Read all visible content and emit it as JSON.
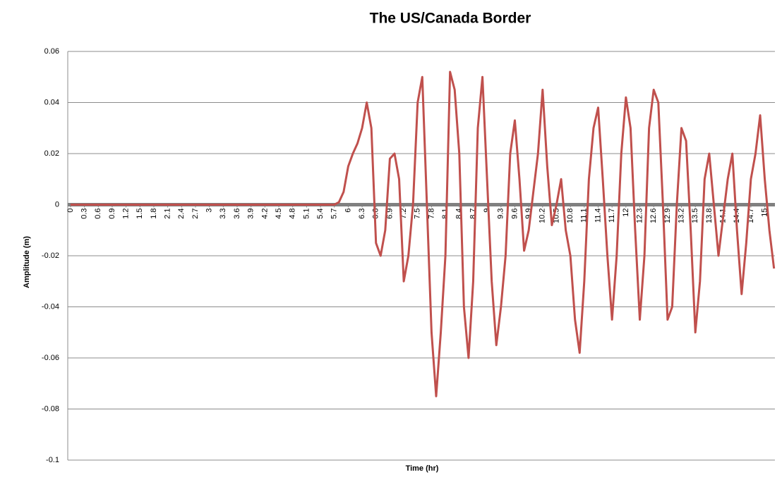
{
  "chart_data": {
    "type": "line",
    "title": "The US/Canada Border",
    "x_label": "Time (hr)",
    "y_label": "Amplitude (m)",
    "x": [
      0,
      0.1,
      0.2,
      0.3,
      0.4,
      0.5,
      0.6,
      0.7,
      0.8,
      0.9,
      1,
      1.1,
      1.2,
      1.3,
      1.4,
      1.5,
      1.6,
      1.7,
      1.8,
      1.9,
      2,
      2.1,
      2.2,
      2.3,
      2.4,
      2.5,
      2.6,
      2.7,
      2.8,
      2.9,
      3,
      3.1,
      3.2,
      3.3,
      3.4,
      3.5,
      3.6,
      3.7,
      3.8,
      3.9,
      4,
      4.1,
      4.2,
      4.3,
      4.4,
      4.5,
      4.6,
      4.7,
      4.8,
      4.9,
      5,
      5.1,
      5.2,
      5.3,
      5.4,
      5.5,
      5.6,
      5.7,
      5.8,
      5.9,
      6,
      6.1,
      6.2,
      6.3,
      6.4,
      6.5,
      6.6,
      6.7,
      6.8,
      6.9,
      7,
      7.1,
      7.2,
      7.3,
      7.4,
      7.5,
      7.6,
      7.7,
      7.8,
      7.9,
      8,
      8.1,
      8.2,
      8.3,
      8.4,
      8.5,
      8.6,
      8.7,
      8.8,
      8.9,
      9,
      9.1,
      9.2,
      9.3,
      9.4,
      9.5,
      9.6,
      9.7,
      9.8,
      9.9,
      10,
      10.1,
      10.2,
      10.3,
      10.4,
      10.5,
      10.6,
      10.7,
      10.8,
      10.9,
      11,
      11.1,
      11.2,
      11.3,
      11.4,
      11.5,
      11.6,
      11.7,
      11.8,
      11.9,
      12,
      12.1,
      12.2,
      12.3,
      12.4,
      12.5,
      12.6,
      12.7,
      12.8,
      12.9,
      13,
      13.1,
      13.2,
      13.3,
      13.4,
      13.5,
      13.6,
      13.7,
      13.8,
      13.9,
      14,
      14.1,
      14.2,
      14.3,
      14.4,
      14.5,
      14.6,
      14.7,
      14.8,
      14.9,
      15,
      15.1,
      15.2
    ],
    "series": [
      {
        "name": "Amplitude",
        "color": "#c0504d",
        "values": [
          0,
          0,
          0,
          0,
          0,
          0,
          0,
          0,
          0,
          0,
          0,
          0,
          0,
          0,
          0,
          0,
          0,
          0,
          0,
          0,
          0,
          0,
          0,
          0,
          0,
          0,
          0,
          0,
          0,
          0,
          0,
          0,
          0,
          0,
          0,
          0,
          0,
          0,
          0,
          0,
          0,
          0,
          0,
          0,
          0,
          0,
          0,
          0,
          0,
          0,
          0,
          0,
          0,
          0,
          0,
          0,
          0,
          0,
          0.001,
          0.005,
          0.015,
          0.02,
          0.024,
          0.03,
          0.04,
          0.03,
          -0.015,
          -0.02,
          -0.01,
          0.018,
          0.02,
          0.01,
          -0.03,
          -0.02,
          0,
          0.04,
          0.05,
          0,
          -0.05,
          -0.075,
          -0.05,
          -0.02,
          0.052,
          0.045,
          0.02,
          -0.04,
          -0.06,
          -0.03,
          0.03,
          0.05,
          0.01,
          -0.03,
          -0.055,
          -0.04,
          -0.02,
          0.02,
          0.033,
          0.01,
          -0.018,
          -0.01,
          0.005,
          0.02,
          0.045,
          0.015,
          -0.008,
          0,
          0.01,
          -0.01,
          -0.02,
          -0.045,
          -0.058,
          -0.03,
          0.01,
          0.03,
          0.038,
          0.01,
          -0.02,
          -0.045,
          -0.02,
          0.02,
          0.042,
          0.03,
          -0.01,
          -0.045,
          -0.02,
          0.03,
          0.045,
          0.04,
          0,
          -0.045,
          -0.04,
          0,
          0.03,
          0.025,
          -0.01,
          -0.05,
          -0.03,
          0.01,
          0.02,
          0,
          -0.02,
          -0.005,
          0.01,
          0.02,
          -0.01,
          -0.035,
          -0.015,
          0.01,
          0.02,
          0.035,
          0.01,
          -0.01,
          -0.025
        ]
      }
    ],
    "xlim": [
      -0.06,
      15.22
    ],
    "xticks": [
      0,
      0.3,
      0.6,
      0.9,
      1.2,
      1.5,
      1.8,
      2.1,
      2.4,
      2.7,
      3,
      3.3,
      3.6,
      3.9,
      4.2,
      4.5,
      4.8,
      5.1,
      5.4,
      5.7,
      6,
      6.3,
      6.6,
      6.9,
      7.2,
      7.5,
      7.8,
      8.1,
      8.4,
      8.7,
      9,
      9.3,
      9.6,
      9.9,
      10.2,
      10.5,
      10.8,
      11.1,
      11.4,
      11.7,
      12,
      12.3,
      12.6,
      12.9,
      13.2,
      13.5,
      13.8,
      14.1,
      14.4,
      14.7,
      15
    ],
    "ylim": [
      -0.1,
      0.06
    ],
    "yticks": [
      -0.1,
      -0.08,
      -0.06,
      -0.04,
      -0.02,
      0,
      0.02,
      0.04,
      0.06
    ],
    "grid": true
  }
}
